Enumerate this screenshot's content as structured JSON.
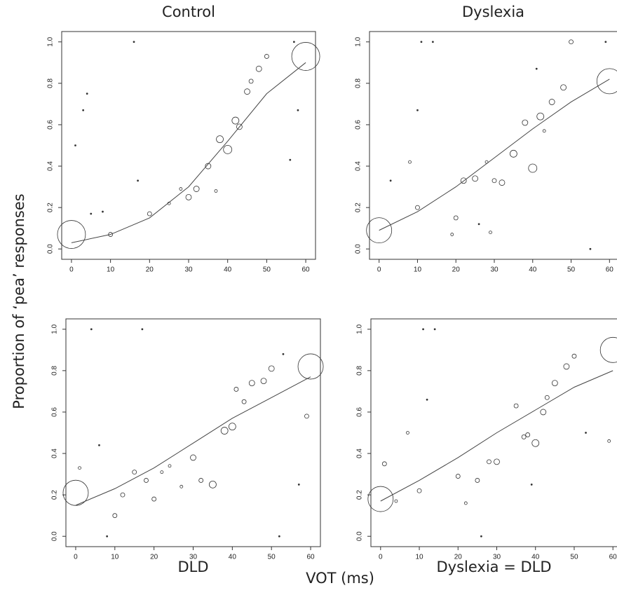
{
  "x_axis_label": "VOT (ms)",
  "y_axis_label": "Proportion of ‘pea’ responses",
  "chart_data": [
    {
      "type": "scatter",
      "title": "Control",
      "title_position": "top",
      "x": [
        0,
        10,
        20,
        25,
        28,
        30,
        32,
        35,
        37,
        38,
        40,
        42,
        43,
        45,
        46,
        48,
        50,
        60,
        3,
        4,
        16,
        1,
        56,
        58,
        57,
        17,
        5,
        8
      ],
      "values": [
        0.07,
        0.07,
        0.17,
        0.22,
        0.29,
        0.25,
        0.29,
        0.4,
        0.28,
        0.53,
        0.48,
        0.62,
        0.59,
        0.76,
        0.81,
        0.87,
        0.93,
        0.93,
        0.67,
        0.75,
        1.0,
        0.5,
        0.43,
        0.67,
        1.0,
        0.33,
        0.17,
        0.18
      ],
      "sizes": [
        10,
        1.5,
        1.5,
        1,
        1,
        2,
        2,
        2,
        1,
        2.5,
        3,
        2.5,
        2,
        2,
        1.5,
        2,
        1.5,
        10,
        0.5,
        0.5,
        0.5,
        0.5,
        0.5,
        0.5,
        0.5,
        0.5,
        0.5,
        0.5
      ],
      "fit_x": [
        0,
        10,
        20,
        30,
        40,
        50,
        60
      ],
      "fit_values": [
        0.03,
        0.07,
        0.15,
        0.3,
        0.52,
        0.75,
        0.9
      ],
      "xlim": [
        -2.5,
        62.5
      ],
      "ylim": [
        -0.05,
        1.05
      ],
      "xticks": [
        0,
        10,
        20,
        30,
        40,
        50,
        60
      ],
      "yticks": [
        {
          "value": 0,
          "label": "0.0"
        },
        {
          "value": 0.2,
          "label": "0.2"
        },
        {
          "value": 0.4,
          "label": "0.4"
        },
        {
          "value": 0.6,
          "label": "0.6"
        },
        {
          "value": 0.8,
          "label": "0.8"
        },
        {
          "value": 1,
          "label": "1.0"
        }
      ]
    },
    {
      "type": "scatter",
      "title": "Dyslexia",
      "title_position": "top",
      "x": [
        0,
        10,
        8,
        20,
        19,
        22,
        25,
        28,
        29,
        30,
        32,
        35,
        38,
        40,
        42,
        43,
        45,
        48,
        50,
        60,
        11,
        14,
        10,
        41,
        55,
        59,
        3,
        26
      ],
      "values": [
        0.09,
        0.2,
        0.42,
        0.15,
        0.07,
        0.33,
        0.34,
        0.42,
        0.08,
        0.33,
        0.32,
        0.46,
        0.61,
        0.39,
        0.64,
        0.57,
        0.71,
        0.78,
        1.0,
        0.81,
        1.0,
        1.0,
        0.67,
        0.87,
        0,
        1.0,
        0.33,
        0.12
      ],
      "sizes": [
        9,
        1.5,
        1,
        1.5,
        1,
        2,
        2,
        1,
        1,
        1.5,
        2,
        2.5,
        2,
        3,
        2.5,
        1,
        2,
        2,
        1.5,
        9,
        0.5,
        0.5,
        0.5,
        0.5,
        0.5,
        0.5,
        0.5,
        0.5
      ],
      "fit_x": [
        0,
        10,
        20,
        30,
        40,
        50,
        60
      ],
      "fit_values": [
        0.09,
        0.18,
        0.3,
        0.44,
        0.58,
        0.71,
        0.82
      ],
      "xlim": [
        -2.5,
        62.5
      ],
      "ylim": [
        -0.05,
        1.05
      ],
      "xticks": [
        0,
        10,
        20,
        30,
        40,
        50,
        60
      ],
      "yticks": [
        {
          "value": 0,
          "label": "0.0"
        },
        {
          "value": 0.2,
          "label": "0.2"
        },
        {
          "value": 0.4,
          "label": "0.4"
        },
        {
          "value": 0.6,
          "label": "0.6"
        },
        {
          "value": 0.8,
          "label": "0.8"
        },
        {
          "value": 1,
          "label": "1.0"
        }
      ]
    },
    {
      "type": "scatter",
      "title": "DLD",
      "title_position": "bottom",
      "x": [
        0,
        1,
        10,
        12,
        15,
        18,
        20,
        22,
        24,
        27,
        30,
        32,
        35,
        38,
        40,
        41,
        43,
        45,
        48,
        50,
        59,
        60,
        4,
        17,
        8,
        52,
        6,
        57,
        53
      ],
      "values": [
        0.21,
        0.33,
        0.1,
        0.2,
        0.31,
        0.27,
        0.18,
        0.31,
        0.34,
        0.24,
        0.38,
        0.27,
        0.25,
        0.51,
        0.53,
        0.71,
        0.65,
        0.74,
        0.75,
        0.81,
        0.58,
        0.82,
        1.0,
        1.0,
        0,
        0,
        0.44,
        0.25,
        0.88
      ],
      "sizes": [
        9,
        1,
        1.5,
        1.5,
        1.5,
        1.5,
        1.5,
        1,
        1,
        1,
        2,
        1.5,
        2.5,
        2.5,
        2.5,
        1.5,
        1.5,
        2,
        2,
        2,
        1.5,
        9,
        0.5,
        0.5,
        0.5,
        0.5,
        0.5,
        0.5,
        0.5
      ],
      "fit_x": [
        0,
        10,
        20,
        30,
        40,
        50,
        60
      ],
      "fit_values": [
        0.15,
        0.23,
        0.33,
        0.45,
        0.57,
        0.67,
        0.77
      ],
      "xlim": [
        -2.5,
        62.5
      ],
      "ylim": [
        -0.05,
        1.05
      ],
      "xticks": [
        0,
        10,
        20,
        30,
        40,
        50,
        60
      ],
      "yticks": [
        {
          "value": 0,
          "label": "0.0"
        },
        {
          "value": 0.2,
          "label": "0.2"
        },
        {
          "value": 0.4,
          "label": "0.4"
        },
        {
          "value": 0.6,
          "label": "0.6"
        },
        {
          "value": 0.8,
          "label": "0.8"
        },
        {
          "value": 1,
          "label": "1.0"
        }
      ]
    },
    {
      "type": "scatter",
      "title": "Dyslexia = DLD",
      "title_position": "bottom",
      "x": [
        0,
        1,
        4,
        7,
        10,
        20,
        22,
        25,
        28,
        30,
        35,
        37,
        38,
        40,
        42,
        43,
        45,
        48,
        50,
        59,
        60,
        11,
        14,
        26,
        39,
        53,
        12
      ],
      "values": [
        0.18,
        0.35,
        0.17,
        0.5,
        0.22,
        0.29,
        0.16,
        0.27,
        0.36,
        0.36,
        0.63,
        0.48,
        0.49,
        0.45,
        0.6,
        0.67,
        0.74,
        0.82,
        0.87,
        0.46,
        0.9,
        1.0,
        1.0,
        0,
        0.25,
        0.5,
        0.66
      ],
      "sizes": [
        9,
        1.5,
        1,
        1,
        1.5,
        1.5,
        1,
        1.5,
        1.5,
        2,
        1.5,
        1.5,
        1.5,
        2.5,
        2,
        1.5,
        2,
        2,
        1.5,
        1,
        9,
        0.5,
        0.5,
        0.5,
        0.5,
        0.5,
        0.5
      ],
      "fit_x": [
        0,
        10,
        20,
        30,
        40,
        50,
        60
      ],
      "fit_values": [
        0.17,
        0.27,
        0.38,
        0.5,
        0.61,
        0.72,
        0.8
      ],
      "xlim": [
        -2.5,
        62.5
      ],
      "ylim": [
        -0.05,
        1.05
      ],
      "xticks": [
        0,
        10,
        20,
        30,
        40,
        50,
        60
      ],
      "yticks": [
        {
          "value": 0,
          "label": "0.0"
        },
        {
          "value": 0.2,
          "label": "0.2"
        },
        {
          "value": 0.4,
          "label": "0.4"
        },
        {
          "value": 0.6,
          "label": "0.6"
        },
        {
          "value": 0.8,
          "label": "0.8"
        },
        {
          "value": 1,
          "label": "1.0"
        }
      ]
    }
  ]
}
